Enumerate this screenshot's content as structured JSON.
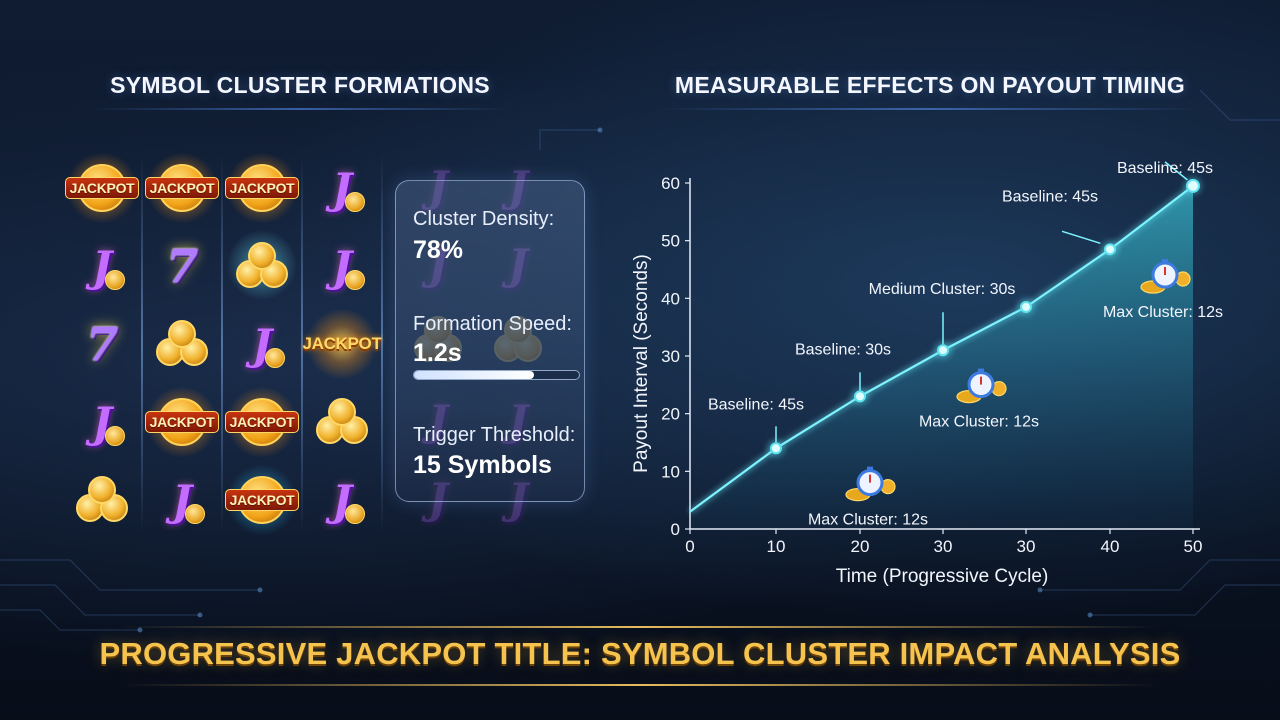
{
  "left_title": "SYMBOL CLUSTER FORMATIONS",
  "right_title": "MEASURABLE EFFECTS ON PAYOUT TIMING",
  "footer_title": "PROGRESSIVE JACKPOT TITLE: SYMBOL CLUSTER IMPACT ANALYSIS",
  "colors": {
    "accent_teal": "#5fe3ef",
    "gold": "#f6c44e",
    "background": "#0d1a2e",
    "seven_purple": "#b07bff",
    "j_purple": "#c46cff"
  },
  "reel_grid": {
    "jackpot_text": "JACKPOT",
    "columns": [
      [
        "jackpot",
        "j",
        "seven",
        "j",
        "coins"
      ],
      [
        "jackpot",
        "seven",
        "coins",
        "jackpot",
        "j"
      ],
      [
        "jackpot",
        "coins-teal",
        "j",
        "jackpot",
        "jackpot-teal"
      ],
      [
        "j",
        "j",
        "jackpot-plain",
        "coins",
        "j"
      ]
    ]
  },
  "stats": {
    "density_label": "Cluster Density:",
    "density_value": "78%",
    "speed_label": "Formation Speed:",
    "speed_value": "1.2s",
    "speed_progress": 0.73,
    "threshold_label": "Trigger Threshold:",
    "threshold_value": "15 Symbols"
  },
  "chart_data": {
    "type": "line",
    "xlabel": "Time (Progressive Cycle)",
    "ylabel": "Payout Interval (Seconds)",
    "x_ticks": [
      "0",
      "10",
      "20",
      "30",
      "30",
      "40",
      "50"
    ],
    "y_ticks": [
      0,
      10,
      20,
      30,
      40,
      50,
      60
    ],
    "ylim": [
      0,
      60
    ],
    "grid": false,
    "series": [
      {
        "points": [
          {
            "x": 0,
            "y": 3
          },
          {
            "x": 10,
            "y": 14
          },
          {
            "x": 20,
            "y": 23
          },
          {
            "x": 30,
            "y": 31
          },
          {
            "x": 30,
            "y": 38.5
          },
          {
            "x": 40,
            "y": 48.5
          },
          {
            "x": 50,
            "y": 59.5
          }
        ]
      }
    ],
    "annotations": [
      {
        "text": "Baseline: 45s",
        "point_index": 1
      },
      {
        "text": "Baseline: 30s",
        "point_index": 2
      },
      {
        "text": "Medium Cluster: 30s",
        "point_index": 3
      },
      {
        "text": "Baseline: 45s",
        "point_index": 5
      },
      {
        "text": "Baseline: 45s",
        "point_index": 6
      },
      {
        "text": "Max Cluster: 12s",
        "x": 20,
        "y": 7
      },
      {
        "text": "Max Cluster: 12s",
        "x": 30,
        "y": 24
      },
      {
        "text": "Max Cluster: 12s",
        "x": 40,
        "y": 43
      }
    ]
  }
}
